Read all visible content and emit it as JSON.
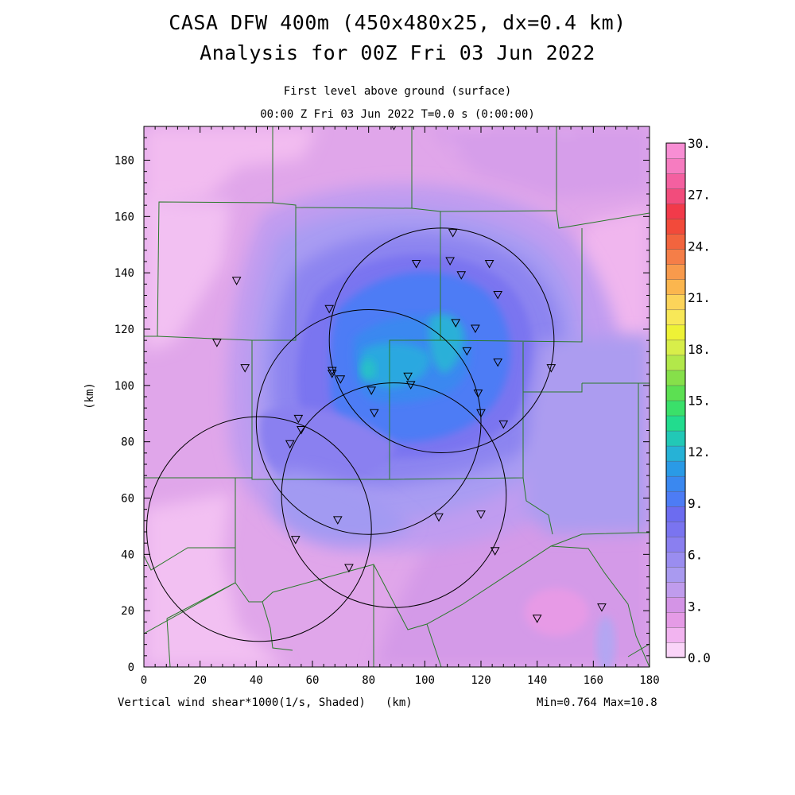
{
  "titles": {
    "line1": "CASA DFW 400m (450x480x25, dx=0.4 km)",
    "line2": "Analysis for 00Z Fri 03 Jun 2022",
    "level": "First level above ground (surface)",
    "time": "00:00 Z Fri 03 Jun 2022   T=0.0 s (0:00:00)"
  },
  "footer": {
    "variable": "Vertical wind shear*1000(1/s, Shaded)",
    "xunit": "(km)",
    "minmax": "Min=0.764 Max=10.8"
  },
  "axes": {
    "ylabel": "(km)",
    "xticks": [
      "0",
      "20",
      "40",
      "60",
      "80",
      "100",
      "120",
      "140",
      "160",
      "180"
    ],
    "yticks": [
      "0",
      "20",
      "40",
      "60",
      "80",
      "100",
      "120",
      "140",
      "160",
      "180"
    ],
    "xrange": [
      0,
      180
    ],
    "yrange": [
      0,
      192
    ]
  },
  "colorbar": {
    "labels": [
      "0.0",
      "3.",
      "6.",
      "9.",
      "12.",
      "15.",
      "18.",
      "21.",
      "24.",
      "27.",
      "30."
    ],
    "colors": [
      "#fad4f8",
      "#f2b4f0",
      "#e59be6",
      "#d494e6",
      "#c09ced",
      "#a99af0",
      "#9a8df0",
      "#8a7ff0",
      "#7a74f0",
      "#6c6cf0",
      "#4d7cf5",
      "#3a88f0",
      "#2a9ae6",
      "#26b2d6",
      "#22c8b6",
      "#22dc8e",
      "#3ae06a",
      "#5ce052",
      "#86e04a",
      "#b2e84a",
      "#d8ee4a",
      "#eef236",
      "#f8e858",
      "#fcd45a",
      "#fbb64e",
      "#f89a4c",
      "#f57e48",
      "#f2643e",
      "#f24a3a",
      "#f23a4a",
      "#f24c7c",
      "#f460a0",
      "#f67cc0",
      "#f88ed4"
    ]
  },
  "circles": [
    {
      "name": "radar-coverage-north",
      "cx": 106,
      "cy": 116,
      "r": 40
    },
    {
      "name": "radar-coverage-west",
      "cx": 80,
      "cy": 87,
      "r": 40
    },
    {
      "name": "radar-coverage-center",
      "cx": 89,
      "cy": 61,
      "r": 40
    },
    {
      "name": "radar-coverage-southwest",
      "cx": 41,
      "cy": 49,
      "r": 40
    }
  ],
  "stations": [
    [
      89,
      192
    ],
    [
      110,
      154
    ],
    [
      97,
      143
    ],
    [
      109,
      144
    ],
    [
      113,
      139
    ],
    [
      123,
      143
    ],
    [
      126,
      132
    ],
    [
      33,
      137
    ],
    [
      66,
      127
    ],
    [
      111,
      122
    ],
    [
      118,
      120
    ],
    [
      26,
      115
    ],
    [
      115,
      112
    ],
    [
      126,
      108
    ],
    [
      145,
      106
    ],
    [
      36,
      106
    ],
    [
      67,
      105
    ],
    [
      67,
      104
    ],
    [
      70,
      102
    ],
    [
      94,
      103
    ],
    [
      81,
      98
    ],
    [
      95,
      100
    ],
    [
      119,
      97
    ],
    [
      82,
      90
    ],
    [
      120,
      90
    ],
    [
      55,
      88
    ],
    [
      56,
      84
    ],
    [
      128,
      86
    ],
    [
      52,
      79
    ],
    [
      69,
      52
    ],
    [
      105,
      53
    ],
    [
      120,
      54
    ],
    [
      54,
      45
    ],
    [
      125,
      41
    ],
    [
      73,
      35
    ],
    [
      140,
      17
    ],
    [
      163,
      21
    ]
  ]
}
